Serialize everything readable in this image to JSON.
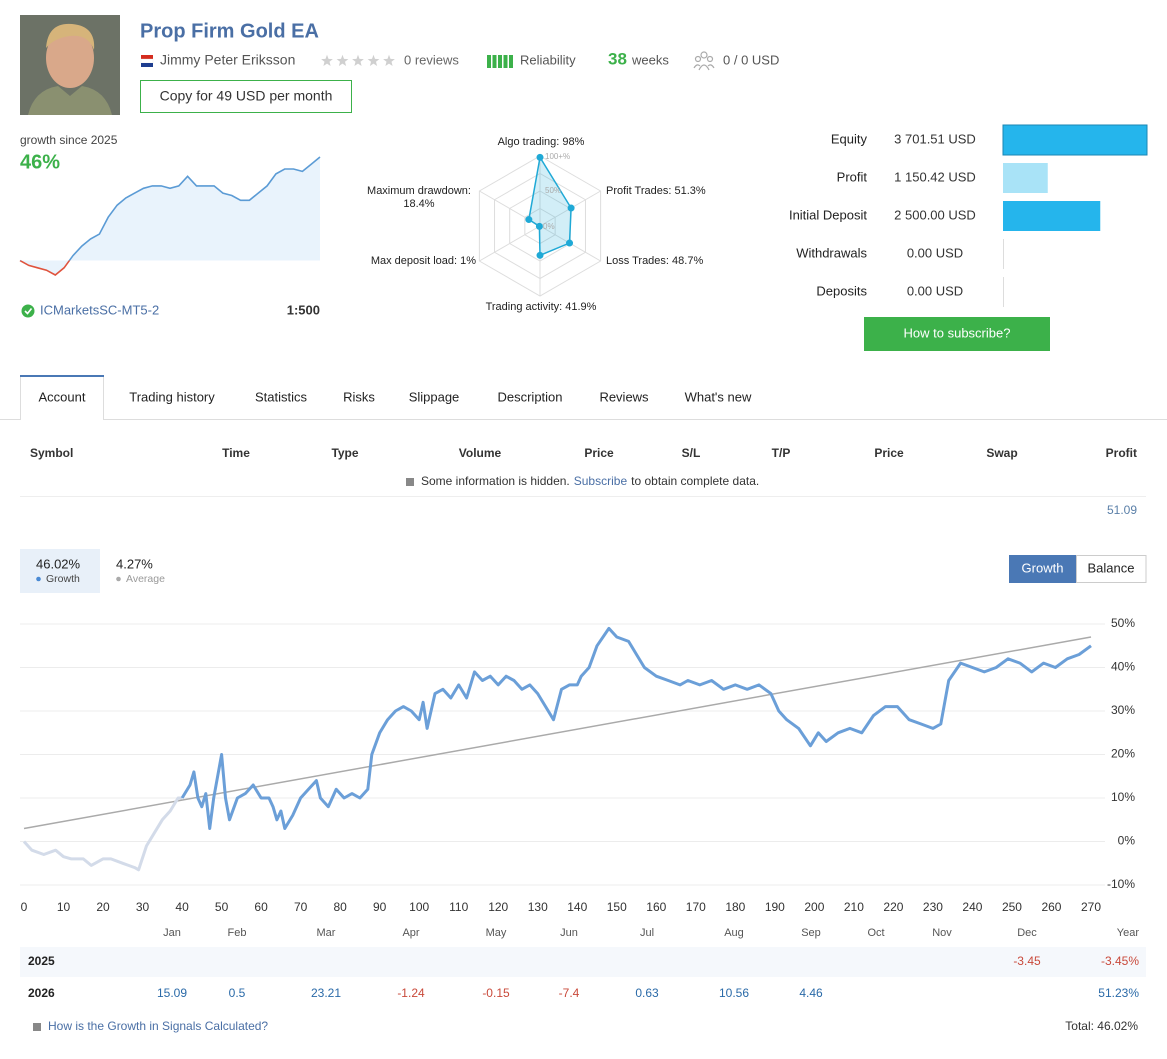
{
  "header": {
    "title": "Prop Firm Gold EA",
    "author": "Jimmy Peter Eriksson",
    "reviews": "0 reviews",
    "reliability": "Reliability",
    "weeks": "38",
    "weeks_unit": "weeks",
    "subscribers": "0 / 0 USD",
    "copy_button": "Copy for 49 USD per month"
  },
  "summary": {
    "growth_label": "growth since 2025",
    "growth": "46%",
    "mini_chart": {
      "values": [
        0,
        -2,
        -3,
        -4,
        -6,
        -3,
        2,
        6,
        9,
        11,
        18,
        23,
        26,
        28,
        30,
        31,
        31,
        30,
        31,
        35,
        31,
        31,
        31,
        28,
        27,
        25,
        25,
        28,
        31,
        36,
        38,
        38,
        37,
        40,
        43
      ],
      "color": "#5b9bd5",
      "negative_color": "#e0533d"
    },
    "server": "ICMarketsSC-MT5-2",
    "leverage": "1:500"
  },
  "radar": {
    "type": "radar",
    "rmax": 100,
    "color": "#1fa9d6",
    "ring_labels": [
      "100+%",
      "50%",
      "0%"
    ],
    "axes": [
      {
        "label_lines": [
          "Algo trading: 98%"
        ],
        "value": 98
      },
      {
        "label_lines": [
          "Profit Trades: 51.3%"
        ],
        "value": 51.3
      },
      {
        "label_lines": [
          "Loss Trades: 48.7%"
        ],
        "value": 48.7
      },
      {
        "label_lines": [
          "Trading activity: 41.9%"
        ],
        "value": 41.9
      },
      {
        "label_lines": [
          "Max deposit load: 1%"
        ],
        "value": 1
      },
      {
        "label_lines": [
          "Maximum drawdown:",
          "18.4%"
        ],
        "value": 18.4
      }
    ]
  },
  "balances": {
    "type": "bar",
    "button": "How to subscribe?",
    "rows": [
      {
        "label": "Equity",
        "value": 3701.51,
        "value_label": "3 701.51 USD",
        "color": "#25b5ec"
      },
      {
        "label": "Profit",
        "value": 1150.42,
        "value_label": "1 150.42 USD",
        "color": "#a9e3f7"
      },
      {
        "label": "Initial Deposit",
        "value": 2500,
        "value_label": "2 500.00 USD",
        "color": "#25b5ec"
      },
      {
        "label": "Withdrawals",
        "value": 0,
        "value_label": "0.00 USD",
        "color": "#25b5ec"
      },
      {
        "label": "Deposits",
        "value": 0,
        "value_label": "0.00 USD",
        "color": "#25b5ec"
      }
    ]
  },
  "tabs": [
    "Account",
    "Trading history",
    "Statistics",
    "Risks",
    "Slippage",
    "Description",
    "Reviews",
    "What's new"
  ],
  "trades_table": {
    "columns": [
      "Symbol",
      "Time",
      "Type",
      "Volume",
      "Price",
      "S/L",
      "T/P",
      "Price",
      "Swap",
      "Profit"
    ],
    "notice": {
      "before": "Some information is hidden.",
      "link": "Subscribe",
      "after": "to obtain complete data."
    },
    "total_profit": 51.09
  },
  "growth_chart": {
    "type": "line",
    "stats": [
      {
        "value": "46.02%",
        "label": "Growth"
      },
      {
        "value": "4.27%",
        "label": "Average"
      }
    ],
    "toggle": [
      "Growth",
      "Balance"
    ],
    "xlim": [
      0,
      270
    ],
    "ylim": [
      -10,
      50
    ],
    "xticks": [
      0,
      10,
      20,
      30,
      40,
      50,
      60,
      70,
      80,
      90,
      100,
      110,
      120,
      130,
      140,
      150,
      160,
      170,
      180,
      190,
      200,
      210,
      220,
      230,
      240,
      250,
      260,
      270
    ],
    "yticks": [
      {
        "value": -10,
        "label": "-10%"
      },
      {
        "value": 0,
        "label": "0%"
      },
      {
        "value": 10,
        "label": "10%"
      },
      {
        "value": 20,
        "label": "20%"
      },
      {
        "value": 30,
        "label": "30%"
      },
      {
        "value": 40,
        "label": "40%"
      },
      {
        "value": 50,
        "label": "50%"
      }
    ],
    "grid": true,
    "series": [
      {
        "color": "#d3dbe9",
        "x": [
          0,
          2,
          5,
          8,
          10,
          12,
          15,
          17,
          20,
          22,
          25,
          28,
          29,
          31,
          33,
          35,
          37,
          39,
          40
        ],
        "values": [
          0,
          -2,
          -3,
          -2,
          -3.5,
          -4,
          -4,
          -5.5,
          -4,
          -4,
          -5,
          -6,
          -6.5,
          -1,
          2,
          5,
          7,
          10,
          10
        ]
      },
      {
        "color": "#6b9fd8",
        "x": [
          40,
          42,
          43,
          44,
          45,
          46,
          47,
          48,
          50,
          51,
          52,
          54,
          56,
          58,
          60,
          62,
          63,
          64,
          65,
          66,
          68,
          70,
          72,
          74,
          75,
          77,
          79,
          81,
          83,
          85,
          87,
          88,
          90,
          92,
          94,
          96,
          98,
          100,
          101,
          102,
          104,
          106,
          108,
          110,
          112,
          114,
          116,
          118,
          120,
          122,
          124,
          126,
          128,
          130,
          132,
          134,
          136,
          138,
          140,
          141,
          143,
          145,
          148,
          150,
          153,
          155,
          157,
          160,
          163,
          166,
          168,
          171,
          174,
          177,
          180,
          183,
          186,
          189,
          191,
          193,
          196,
          199,
          201,
          203,
          206,
          209,
          212,
          215,
          218,
          221,
          224,
          227,
          230,
          232,
          234,
          237,
          240,
          243,
          246,
          249,
          252,
          255,
          258,
          261,
          264,
          267,
          270
        ],
        "values": [
          10,
          13,
          16,
          10,
          8,
          11,
          3,
          10,
          20,
          10,
          5,
          10,
          11,
          13,
          10,
          10,
          8,
          5,
          7,
          3,
          6,
          10,
          12,
          14,
          10,
          8,
          12,
          10,
          11,
          10,
          12,
          20,
          25,
          28,
          30,
          31,
          30,
          28,
          32,
          26,
          34,
          35,
          33,
          36,
          33,
          39,
          37,
          38,
          36,
          38,
          37,
          35,
          36,
          34,
          31,
          28,
          35,
          36,
          36,
          38,
          40,
          45,
          49,
          47,
          46,
          43,
          40,
          38,
          37,
          36,
          37,
          36,
          37,
          35,
          36,
          35,
          36,
          34,
          30,
          28,
          26,
          22,
          25,
          23,
          25,
          26,
          25,
          29,
          31,
          31,
          28,
          27,
          26,
          27,
          37,
          41,
          40,
          39,
          40,
          42,
          41,
          39,
          41,
          40,
          42,
          43,
          45
        ]
      }
    ],
    "trend": {
      "color": "#aaaaaa",
      "x": [
        0,
        270
      ],
      "values": [
        3,
        47
      ]
    }
  },
  "monthly_table": {
    "columns": [
      "Jan",
      "Feb",
      "Mar",
      "Apr",
      "May",
      "Jun",
      "Jul",
      "Aug",
      "Sep",
      "Oct",
      "Nov",
      "Dec"
    ],
    "year_header": "Year",
    "rows": [
      {
        "year": "2025",
        "values": [
          null,
          null,
          null,
          null,
          null,
          null,
          null,
          null,
          null,
          null,
          null,
          -3.45
        ],
        "total": "-3.45%"
      },
      {
        "year": "2026",
        "values": [
          15.09,
          0.5,
          23.21,
          -1.24,
          -0.15,
          -7.4,
          0.63,
          10.56,
          4.46,
          null,
          null,
          null
        ],
        "total": "51.23%"
      }
    ]
  },
  "footer": {
    "link": "How is the Growth in Signals Calculated?",
    "total": "Total: 46.02%"
  }
}
